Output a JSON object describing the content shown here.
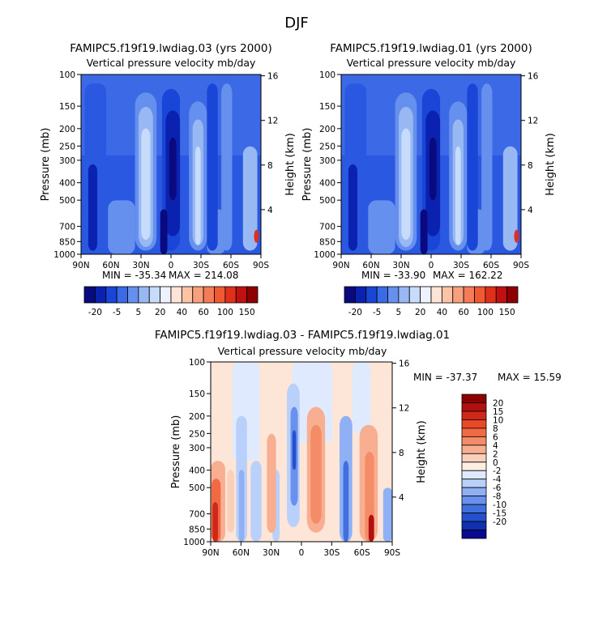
{
  "page_title": "DJF",
  "chart_data": [
    {
      "type": "heatmap",
      "id": "top-left",
      "title": "FAMIPC5.f19f19.lwdiag.03 (yrs 2000)",
      "subtitle": "Vertical pressure velocity mb/day",
      "ylabel": "Pressure (mb)",
      "ylabel_right": "Height (km)",
      "x_ticks": [
        "90N",
        "60N",
        "30N",
        "0",
        "30S",
        "60S",
        "90S"
      ],
      "y_ticks": [
        "100",
        "150",
        "200",
        "250",
        "300",
        "400",
        "500",
        "700",
        "850",
        "1000"
      ],
      "y_ticks_right": [
        "16",
        "12",
        "8",
        "4"
      ],
      "min_label": "MIN = -35.34",
      "max_label": "MAX = 214.08",
      "min": -35.34,
      "max": 214.08,
      "colorbar": {
        "orientation": "horizontal",
        "labels": [
          "-20",
          "-5",
          "5",
          "20",
          "40",
          "60",
          "100",
          "150"
        ],
        "colors": [
          "#0a0a80",
          "#0b22b0",
          "#1a46d8",
          "#3a6ae6",
          "#6690ee",
          "#98b8f4",
          "#c6dcfa",
          "#eef2ff",
          "#fde4d6",
          "#fbc4a6",
          "#f8a07c",
          "#f57c58",
          "#f05a32",
          "#e0301c",
          "#c01010",
          "#8e0000"
        ]
      }
    },
    {
      "type": "heatmap",
      "id": "top-right",
      "title": "FAMIPC5.f19f19.lwdiag.01 (yrs 2000)",
      "subtitle": "Vertical pressure velocity mb/day",
      "ylabel": "Pressure (mb)",
      "ylabel_right": "Height (km)",
      "x_ticks": [
        "90N",
        "60N",
        "30N",
        "0",
        "30S",
        "60S",
        "90S"
      ],
      "y_ticks": [
        "100",
        "150",
        "200",
        "250",
        "300",
        "400",
        "500",
        "700",
        "850",
        "1000"
      ],
      "y_ticks_right": [
        "16",
        "12",
        "8",
        "4"
      ],
      "min_label": "MIN = -33.90",
      "max_label": "MAX = 162.22",
      "min": -33.9,
      "max": 162.22,
      "colorbar": {
        "orientation": "horizontal",
        "labels": [
          "-20",
          "-5",
          "5",
          "20",
          "40",
          "60",
          "100",
          "150"
        ],
        "colors": [
          "#0a0a80",
          "#0b22b0",
          "#1a46d8",
          "#3a6ae6",
          "#6690ee",
          "#98b8f4",
          "#c6dcfa",
          "#eef2ff",
          "#fde4d6",
          "#fbc4a6",
          "#f8a07c",
          "#f57c58",
          "#f05a32",
          "#e0301c",
          "#c01010",
          "#8e0000"
        ]
      }
    },
    {
      "type": "heatmap",
      "id": "bottom-diff",
      "title": "FAMIPC5.f19f19.lwdiag.03 - FAMIPC5.f19f19.lwdiag.01",
      "subtitle": "Vertical pressure velocity mb/day",
      "ylabel": "Pressure (mb)",
      "ylabel_right": "Height (km)",
      "x_ticks": [
        "90N",
        "60N",
        "30N",
        "0",
        "30S",
        "60S",
        "90S"
      ],
      "y_ticks": [
        "100",
        "150",
        "200",
        "250",
        "300",
        "400",
        "500",
        "700",
        "850",
        "1000"
      ],
      "y_ticks_right": [
        "16",
        "12",
        "8",
        "4"
      ],
      "min_label": "MIN = -37.37",
      "max_label": "MAX =  15.59",
      "min": -37.37,
      "max": 15.59,
      "colorbar": {
        "orientation": "vertical",
        "labels": [
          "20",
          "15",
          "10",
          "8",
          "6",
          "4",
          "2",
          "0",
          "-2",
          "-4",
          "-6",
          "-8",
          "-10",
          "-15",
          "-20"
        ],
        "colors": [
          "#8c0000",
          "#b01010",
          "#d02818",
          "#e84a28",
          "#f26a44",
          "#f58c68",
          "#f8ae90",
          "#fbd0ba",
          "#fdeee4",
          "#dfeafe",
          "#b8d0fa",
          "#8fb0f4",
          "#6890ec",
          "#4070e0",
          "#2450d0",
          "#1030b0",
          "#080890"
        ]
      }
    }
  ]
}
